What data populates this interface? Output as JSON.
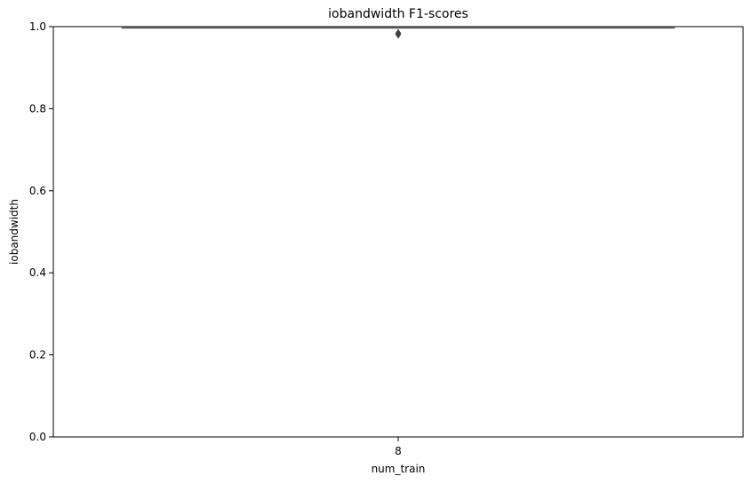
{
  "chart_data": {
    "type": "box",
    "title": "iobandwidth F1-scores",
    "xlabel": "num_train",
    "ylabel": "iobandwidth",
    "ylim": [
      0.0,
      1.0
    ],
    "yticks": [
      "0.0",
      "0.2",
      "0.4",
      "0.6",
      "0.8",
      "1.0"
    ],
    "categories": [
      "8"
    ],
    "boxes": [
      {
        "category": "8",
        "q1": 0.998,
        "median": 0.998,
        "q3": 0.998,
        "whisker_low": 0.998,
        "whisker_high": 0.998,
        "outliers": [
          0.984,
          0.981
        ]
      }
    ],
    "grid": false,
    "colors": {
      "box": "#555555",
      "outlier": "#3f3f3f",
      "axes": "#000000"
    }
  }
}
